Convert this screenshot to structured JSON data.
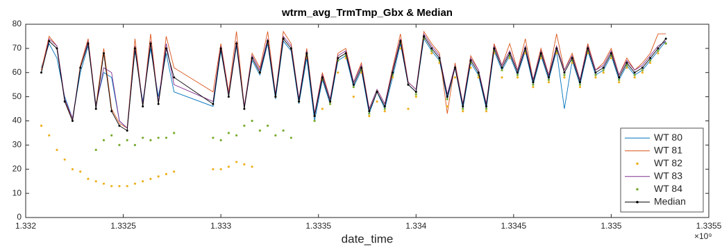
{
  "chart_data": {
    "type": "line",
    "title": "wtrm_avg_TrmTmp_Gbx &  Median",
    "x_label": "date_time",
    "x_exponent": "×10⁹",
    "xlim": [
      1.332,
      1.3355
    ],
    "xticks": [
      1.332,
      1.3325,
      1.333,
      1.3335,
      1.334,
      1.3345,
      1.335,
      1.3355
    ],
    "ylim": [
      0,
      80
    ],
    "yticks": [
      0,
      10,
      20,
      30,
      40,
      50,
      60,
      70,
      80
    ],
    "legend": "southeast",
    "x": [
      1.33208,
      1.33212,
      1.33216,
      1.3322,
      1.33224,
      1.33228,
      1.33232,
      1.33236,
      1.3324,
      1.33244,
      1.33248,
      1.33252,
      1.33256,
      1.3326,
      1.33264,
      1.33268,
      1.33272,
      1.33276,
      1.33296,
      1.333,
      1.33304,
      1.33308,
      1.33312,
      1.33316,
      1.3332,
      1.33324,
      1.33328,
      1.33332,
      1.33336,
      1.3334,
      1.33344,
      1.33348,
      1.33352,
      1.33356,
      1.3336,
      1.33364,
      1.33368,
      1.33372,
      1.33376,
      1.3338,
      1.33384,
      1.33388,
      1.33392,
      1.33396,
      1.334,
      1.33404,
      1.33408,
      1.33412,
      1.33416,
      1.3342,
      1.33424,
      1.33428,
      1.33432,
      1.33436,
      1.3344,
      1.33444,
      1.33448,
      1.33452,
      1.33456,
      1.3346,
      1.33464,
      1.33468,
      1.33472,
      1.33476,
      1.3348,
      1.33484,
      1.33488,
      1.33492,
      1.33496,
      1.335,
      1.33504,
      1.33508,
      1.33512,
      1.33516,
      1.3352,
      1.33524,
      1.33528
    ],
    "series": [
      {
        "name": "WT 80",
        "color": "#0072bd",
        "style": "line",
        "values": [
          62,
          72,
          66,
          50,
          41,
          60,
          71,
          47,
          60,
          58,
          40,
          37,
          69,
          48,
          70,
          50,
          68,
          52,
          46,
          69,
          51,
          71,
          46,
          65,
          59,
          72,
          49,
          73,
          69,
          47,
          66,
          40,
          57,
          47,
          65,
          67,
          54,
          61,
          43,
          52,
          45,
          58,
          72,
          55,
          52,
          74,
          69,
          65,
          49,
          62,
          45,
          64,
          59,
          45,
          69,
          61,
          67,
          59,
          69,
          55,
          67,
          57,
          69,
          45,
          65,
          55,
          69,
          59,
          61,
          67,
          57,
          63,
          59,
          61,
          65,
          69,
          73
        ]
      },
      {
        "name": "WT 81",
        "color": "#d95319",
        "style": "line",
        "values": [
          61,
          75,
          71,
          49,
          40,
          63,
          74,
          46,
          70,
          45,
          39,
          37,
          74,
          46,
          76,
          47,
          75,
          62,
          52,
          72,
          52,
          77,
          46,
          68,
          62,
          77,
          51,
          77,
          72,
          49,
          70,
          43,
          60,
          49,
          68,
          70,
          56,
          64,
          45,
          53,
          47,
          62,
          76,
          56,
          53,
          77,
          72,
          68,
          43,
          64,
          47,
          67,
          61,
          47,
          72,
          63,
          72,
          61,
          74,
          57,
          70,
          59,
          76,
          61,
          68,
          57,
          72,
          61,
          64,
          70,
          59,
          66,
          61,
          64,
          68,
          76,
          76
        ]
      },
      {
        "name": "WT 82",
        "color": "#edb120",
        "style": "markers",
        "values": [
          38,
          34,
          28,
          24,
          20,
          19,
          16,
          15,
          14,
          13,
          13,
          13,
          14,
          15,
          16,
          17,
          18,
          19,
          20,
          20,
          21,
          23,
          22,
          21,
          60,
          72,
          50,
          74,
          70,
          48,
          66,
          42,
          45,
          48,
          60,
          66,
          50,
          60,
          42,
          48,
          44,
          58,
          70,
          45,
          50,
          74,
          68,
          64,
          46,
          58,
          44,
          62,
          58,
          44,
          68,
          58,
          66,
          58,
          68,
          54,
          66,
          56,
          68,
          58,
          64,
          54,
          68,
          58,
          60,
          66,
          56,
          62,
          58,
          60,
          64,
          68,
          72
        ]
      },
      {
        "name": "WT 83",
        "color": "#7e2f8e",
        "style": "line",
        "values": [
          60,
          74,
          71,
          49,
          41,
          62,
          73,
          46,
          62,
          60,
          40,
          37,
          71,
          47,
          73,
          48,
          72,
          55,
          48,
          71,
          51,
          73,
          46,
          67,
          61,
          74,
          51,
          75,
          71,
          49,
          69,
          43,
          59,
          49,
          67,
          69,
          56,
          63,
          45,
          53,
          47,
          61,
          74,
          56,
          53,
          76,
          71,
          67,
          51,
          63,
          47,
          66,
          61,
          47,
          71,
          63,
          69,
          61,
          71,
          57,
          69,
          59,
          71,
          61,
          67,
          57,
          71,
          61,
          63,
          69,
          59,
          65,
          61,
          63,
          67,
          71,
          73
        ]
      },
      {
        "name": "WT 84",
        "color": "#77ac30",
        "style": "markers",
        "values": [
          null,
          null,
          null,
          null,
          null,
          null,
          null,
          28,
          32,
          34,
          30,
          32,
          30,
          33,
          32,
          33,
          33,
          35,
          33,
          32,
          35,
          34,
          38,
          40,
          36,
          38,
          34,
          36,
          33,
          48,
          67,
          40,
          57,
          47,
          65,
          67,
          54,
          61,
          43,
          52,
          45,
          59,
          72,
          55,
          51,
          74,
          69,
          65,
          49,
          62,
          45,
          64,
          59,
          45,
          69,
          61,
          67,
          59,
          69,
          55,
          67,
          57,
          69,
          59,
          65,
          55,
          69,
          59,
          61,
          67,
          57,
          63,
          59,
          61,
          65,
          69,
          72
        ]
      },
      {
        "name": "Median",
        "color": "#000000",
        "style": "line-markers",
        "values": [
          60,
          73,
          70,
          48,
          40,
          62,
          72,
          45,
          68,
          44,
          38,
          36,
          70,
          46,
          72,
          47,
          70,
          58,
          47,
          70,
          50,
          72,
          45,
          66,
          60,
          73,
          50,
          74,
          70,
          48,
          68,
          42,
          58,
          48,
          66,
          68,
          55,
          62,
          44,
          52,
          46,
          60,
          73,
          55,
          52,
          75,
          70,
          66,
          50,
          62,
          46,
          65,
          60,
          46,
          70,
          62,
          68,
          60,
          70,
          56,
          68,
          58,
          70,
          60,
          66,
          56,
          70,
          60,
          62,
          68,
          58,
          64,
          60,
          62,
          66,
          70,
          74
        ]
      }
    ]
  }
}
